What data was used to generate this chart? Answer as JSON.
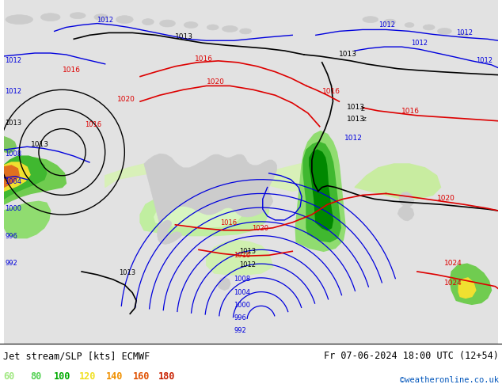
{
  "title_left": "Jet stream/SLP [kts] ECMWF",
  "title_right": "Fr 07-06-2024 18:00 UTC (12+54)",
  "credit": "©weatheronline.co.uk",
  "legend_values": [
    60,
    80,
    100,
    120,
    140,
    160,
    180
  ],
  "legend_colors": [
    "#a0e880",
    "#50d050",
    "#00aa00",
    "#f0e020",
    "#f09000",
    "#e05000",
    "#c82000"
  ],
  "bg_color": "#e8e8e8",
  "land_color": "#d8d8d8",
  "figsize": [
    6.34,
    4.9
  ],
  "dpi": 100
}
